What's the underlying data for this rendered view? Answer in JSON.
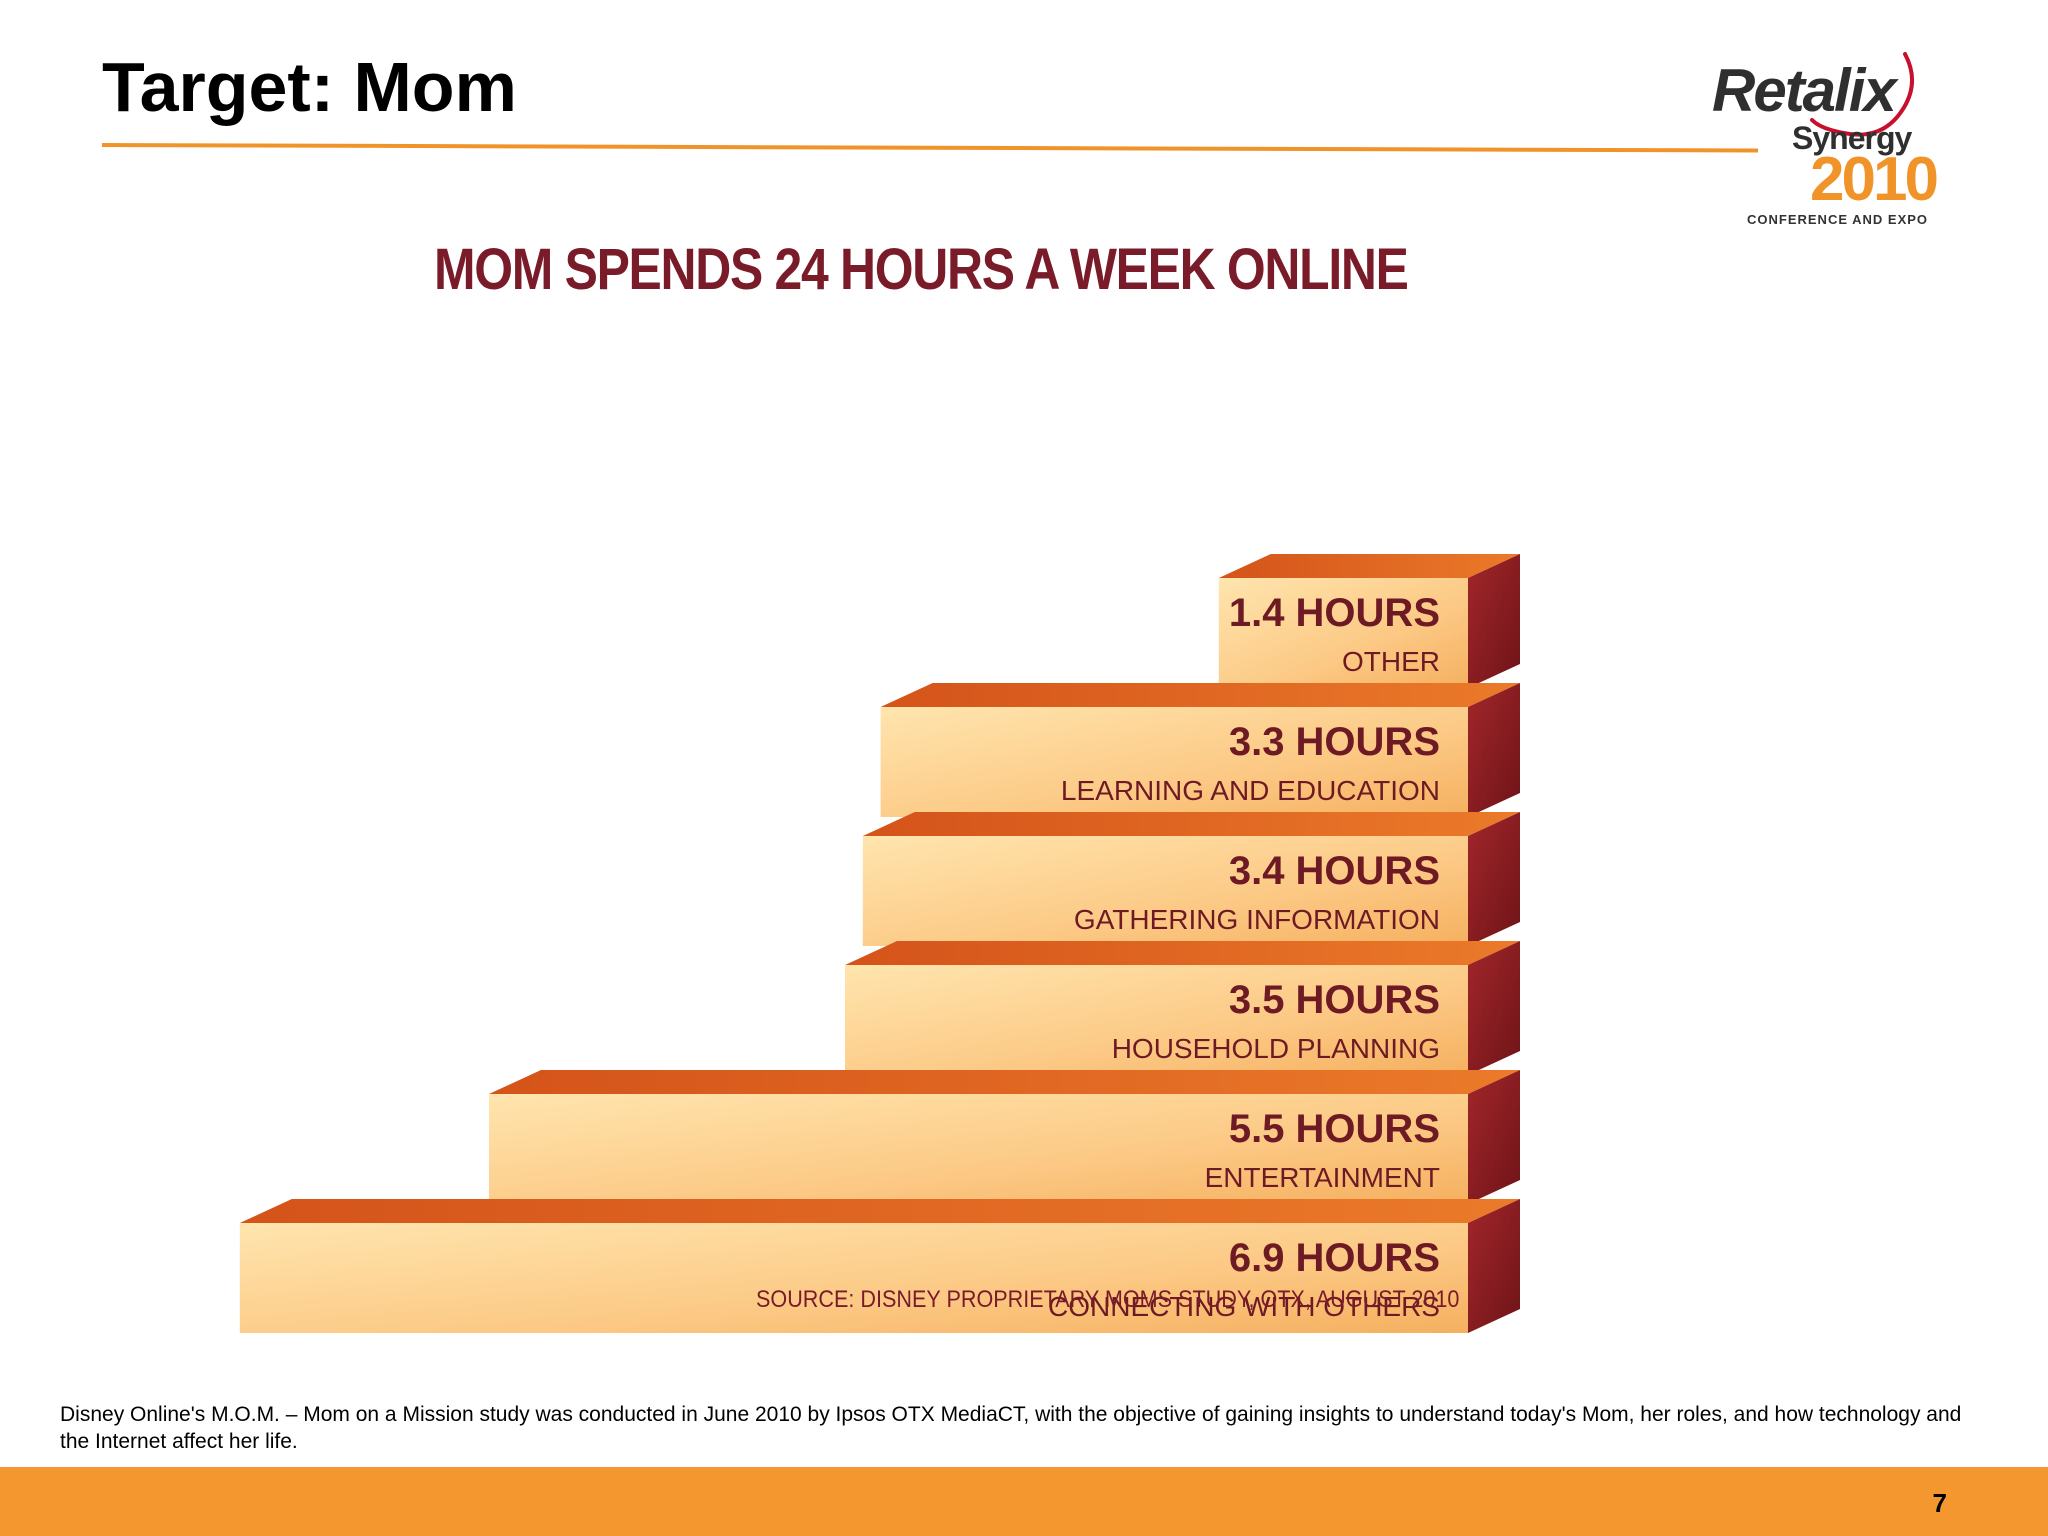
{
  "slide": {
    "title": "Target: Mom",
    "page_number": "7",
    "note": "Disney Online's M.O.M. – Mom on a Mission study was conducted in June 2010 by Ipsos OTX MediaCT, with the objective of gaining insights to understand today's Mom, her roles, and how technology and the Internet affect her life."
  },
  "logo": {
    "brand": "Retalix",
    "event": "Synergy",
    "year": "2010",
    "subtitle": "CONFERENCE AND EXPO"
  },
  "colors": {
    "accent_orange": "#f3972e",
    "chart_text": "#7a1b2a",
    "step_front_light": "#ffe3a8",
    "step_front_dark": "#f7b866",
    "step_top": "#e2621d",
    "step_side": "#8a1c22"
  },
  "chart_data": {
    "type": "bar",
    "orientation": "horizontal",
    "title": "MOM SPENDS 24 HOURS A WEEK ONLINE",
    "source": "SOURCE: DISNEY PROPRIETARY MOMS STUDY, OTX, AUGUST 2010",
    "unit": "hours per week",
    "bars": [
      {
        "value": 1.4,
        "value_label": "1.4 HOURS",
        "category": "OTHER"
      },
      {
        "value": 3.3,
        "value_label": "3.3 HOURS",
        "category": "LEARNING AND EDUCATION"
      },
      {
        "value": 3.4,
        "value_label": "3.4 HOURS",
        "category": "GATHERING INFORMATION"
      },
      {
        "value": 3.5,
        "value_label": "3.5 HOURS",
        "category": "HOUSEHOLD PLANNING"
      },
      {
        "value": 5.5,
        "value_label": "5.5 HOURS",
        "category": "ENTERTAINMENT"
      },
      {
        "value": 6.9,
        "value_label": "6.9 HOURS",
        "category": "CONNECTING WITH OTHERS"
      }
    ]
  }
}
